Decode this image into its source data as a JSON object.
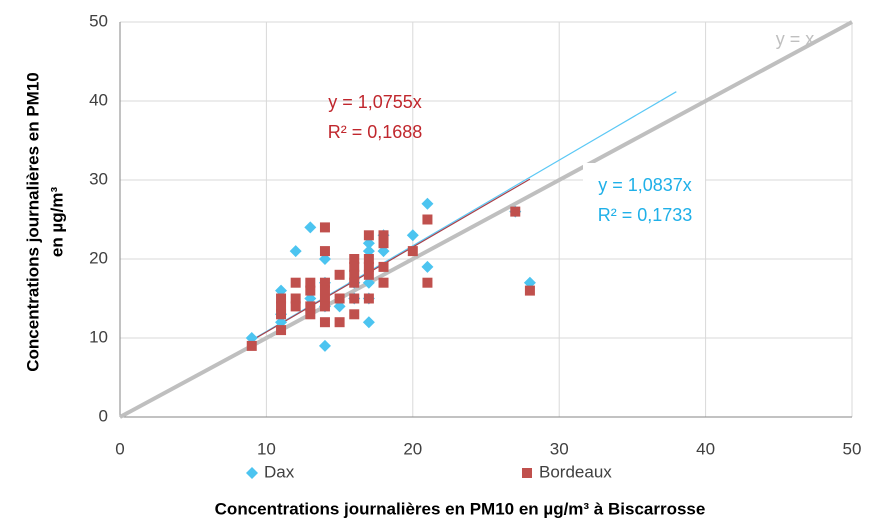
{
  "chart_data": {
    "type": "scatter",
    "x_label": "Concentrations journalières  en PM10 en µg/m³ à Biscarrosse",
    "y_label": [
      "Concentrations journalières en PM10",
      "en µg/m³"
    ],
    "xlim": [
      0,
      50
    ],
    "ylim": [
      0,
      50
    ],
    "xticks": [
      0,
      10,
      20,
      30,
      40,
      50
    ],
    "yticks": [
      0,
      10,
      20,
      30,
      40,
      50
    ],
    "grid": true,
    "legend": "bottom",
    "reference_line": {
      "slope": 1,
      "color": "#bfbfbf"
    },
    "series": [
      {
        "name": "Dax",
        "color": "#4cc4f0",
        "marker": "diamond",
        "x": [
          9,
          11,
          11,
          11,
          12,
          13,
          13,
          14,
          14,
          14,
          14,
          15,
          16,
          16,
          17,
          17,
          17,
          17,
          17,
          18,
          18,
          20,
          21,
          21,
          27,
          28
        ],
        "values": [
          10,
          16,
          13,
          12,
          21,
          24,
          15,
          20,
          17,
          14,
          9,
          14,
          17,
          15,
          22,
          21,
          17,
          15,
          12,
          23,
          21,
          23,
          27,
          19,
          26,
          17
        ],
        "trendline_slope": 1.0837,
        "trendline_x": [
          9,
          38
        ],
        "trendline_color": "#5bc8f5"
      },
      {
        "name": "Bordeaux",
        "color": "#c0504d",
        "marker": "square",
        "x": [
          9,
          11,
          11,
          11,
          11,
          12,
          12,
          12,
          13,
          13,
          13,
          13,
          14,
          14,
          14,
          14,
          14,
          14,
          14,
          15,
          15,
          15,
          16,
          16,
          16,
          16,
          16,
          16,
          17,
          17,
          17,
          17,
          17,
          18,
          18,
          18,
          18,
          20,
          21,
          21,
          27,
          28
        ],
        "values": [
          9,
          15,
          14,
          13,
          11,
          17,
          15,
          14,
          17,
          16,
          14,
          13,
          24,
          21,
          17,
          16,
          15,
          14,
          12,
          18,
          15,
          12,
          20,
          19,
          18,
          17,
          15,
          13,
          23,
          20,
          19,
          18,
          15,
          23,
          22,
          19,
          17,
          21,
          25,
          17,
          26,
          16
        ],
        "trendline_slope": 1.0755,
        "trendline_x": [
          9,
          28
        ],
        "trendline_color": "#a8404a"
      }
    ],
    "annotations": [
      {
        "text": "y = x",
        "color": "#bfbfbf"
      },
      {
        "text": "y = 1,0755x",
        "color": "#c0272d"
      },
      {
        "text": "R² = 0,1688",
        "color": "#c0272d"
      },
      {
        "text": "y = 1,0837x",
        "color": "#1fb0e8"
      },
      {
        "text": "R² = 0,1733",
        "color": "#1fb0e8"
      }
    ]
  }
}
